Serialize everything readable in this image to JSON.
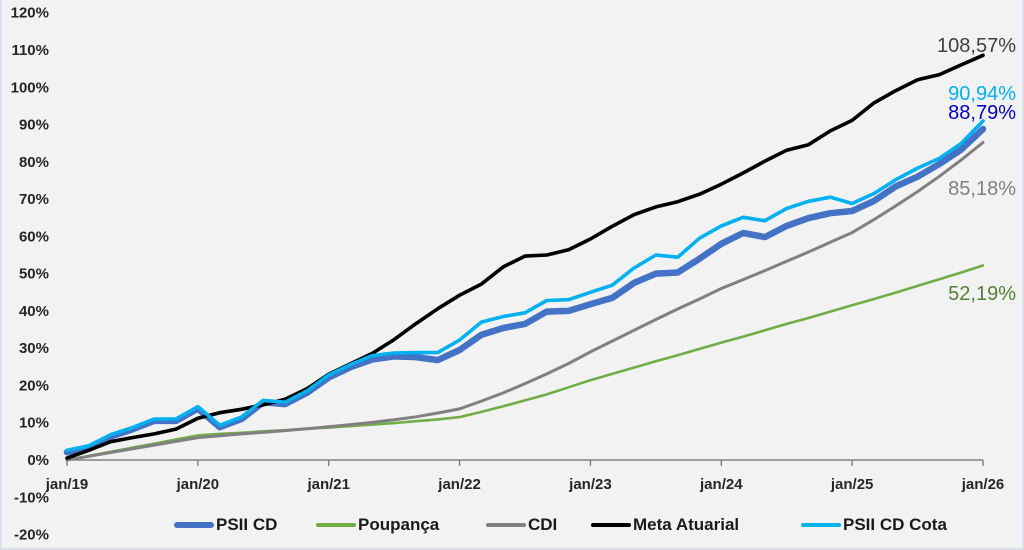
{
  "chart_data": {
    "type": "line",
    "title": "",
    "xlabel": "",
    "ylabel": "",
    "ylim": [
      -20,
      120
    ],
    "grid": false,
    "legend_position": "bottom",
    "y_ticks": [
      {
        "value": 120,
        "label": "120%"
      },
      {
        "value": 110,
        "label": "110%"
      },
      {
        "value": 100,
        "label": "100%"
      },
      {
        "value": 90,
        "label": "90%"
      },
      {
        "value": 80,
        "label": "80%"
      },
      {
        "value": 70,
        "label": "70%"
      },
      {
        "value": 60,
        "label": "60%"
      },
      {
        "value": 50,
        "label": "50%"
      },
      {
        "value": 40,
        "label": "40%"
      },
      {
        "value": 30,
        "label": "30%"
      },
      {
        "value": 20,
        "label": "20%"
      },
      {
        "value": 10,
        "label": "10%"
      },
      {
        "value": 0,
        "label": "0%"
      },
      {
        "value": -10,
        "label": "-10%"
      },
      {
        "value": -20,
        "label": "-20%"
      }
    ],
    "x_tick_labels": [
      "jan/19",
      "jan/20",
      "jan/21",
      "jan/22",
      "jan/23",
      "jan/24",
      "jan/25",
      "jan/26"
    ],
    "x": [
      "jan/19",
      "mar/19",
      "mai/19",
      "jul/19",
      "set/19",
      "nov/19",
      "jan/20",
      "mar/20",
      "mai/20",
      "jul/20",
      "set/20",
      "nov/20",
      "jan/21",
      "mar/21",
      "mai/21",
      "jul/21",
      "set/21",
      "nov/21",
      "jan/22",
      "mar/22",
      "mai/22",
      "jul/22",
      "set/22",
      "nov/22",
      "jan/23",
      "mar/23",
      "mai/23",
      "jul/23",
      "set/23",
      "nov/23",
      "jan/24",
      "mar/24",
      "mai/24",
      "jul/24",
      "set/24",
      "nov/24",
      "jan/25",
      "mar/25",
      "mai/25",
      "jul/25",
      "set/25",
      "nov/25",
      "jan/26"
    ],
    "series": [
      {
        "name": "PSII CD",
        "color": "#4472C4",
        "values": [
          2.1,
          3.3,
          6.3,
          8.2,
          10.5,
          10.5,
          13.8,
          8.8,
          11.0,
          15.5,
          15.0,
          18.0,
          22.1,
          24.9,
          27.0,
          27.8,
          27.6,
          26.8,
          29.5,
          33.6,
          35.4,
          36.5,
          39.8,
          40.0,
          41.8,
          43.5,
          47.5,
          50.0,
          50.3,
          54.0,
          58.0,
          60.9,
          59.8,
          62.8,
          64.9,
          66.2,
          66.8,
          69.5,
          73.4,
          76.0,
          79.4,
          83.3,
          88.79
        ]
      },
      {
        "name": "Poupança",
        "color": "#70AD47",
        "values": [
          0,
          1.1,
          2.2,
          3.3,
          4.4,
          5.5,
          6.6,
          7.0,
          7.3,
          7.7,
          8.0,
          8.4,
          8.7,
          9.1,
          9.5,
          9.9,
          10.4,
          10.9,
          11.5,
          12.9,
          14.4,
          16.0,
          17.6,
          19.5,
          21.4,
          23.1,
          24.8,
          26.5,
          28.1,
          29.8,
          31.5,
          33.1,
          34.8,
          36.5,
          38.1,
          39.8,
          41.5,
          43.2,
          44.9,
          46.7,
          48.5,
          50.3,
          52.19
        ]
      },
      {
        "name": "CDI",
        "color": "#808080",
        "values": [
          0,
          1.0,
          2.0,
          3.0,
          4.0,
          5.0,
          6.0,
          6.5,
          7.0,
          7.4,
          7.9,
          8.4,
          8.9,
          9.5,
          10.1,
          10.8,
          11.6,
          12.6,
          13.7,
          15.8,
          18.0,
          20.5,
          23.1,
          25.9,
          29.0,
          31.9,
          34.8,
          37.7,
          40.5,
          43.2,
          46.0,
          48.4,
          50.8,
          53.3,
          55.8,
          58.4,
          61.0,
          64.5,
          68.2,
          72.0,
          76.1,
          80.5,
          85.18
        ]
      },
      {
        "name": "Meta Atuarial",
        "color": "#000000",
        "values": [
          0.5,
          2.6,
          4.9,
          6.0,
          7.0,
          8.3,
          11.2,
          12.7,
          13.6,
          14.8,
          16.3,
          19.1,
          23.0,
          25.8,
          28.6,
          32.3,
          36.6,
          40.6,
          44.2,
          47.2,
          51.8,
          54.7,
          55.0,
          56.4,
          59.3,
          62.7,
          65.8,
          67.9,
          69.3,
          71.3,
          74.0,
          77.0,
          80.2,
          83.1,
          84.6,
          88.3,
          91.1,
          95.8,
          99.1,
          102.0,
          103.4,
          106.0,
          108.57
        ]
      },
      {
        "name": "PSII CD Cota",
        "color": "#00B0F0",
        "values": [
          2.6,
          3.8,
          6.8,
          8.7,
          11.0,
          11.0,
          14.3,
          9.3,
          11.5,
          16.0,
          15.5,
          18.5,
          22.8,
          25.6,
          28.0,
          28.7,
          28.8,
          28.8,
          32.2,
          37.0,
          38.5,
          39.5,
          42.8,
          43.0,
          45.0,
          46.9,
          51.5,
          55.0,
          54.4,
          59.5,
          62.8,
          65.1,
          64.2,
          67.5,
          69.4,
          70.5,
          68.8,
          71.5,
          75.2,
          78.3,
          80.9,
          84.9,
          90.94
        ]
      }
    ],
    "annotations": [
      {
        "text": "108,57%",
        "series": "Meta Atuarial",
        "color": "#404040"
      },
      {
        "text": "90,94%",
        "series": "PSII CD Cota",
        "color": "#00B0F0"
      },
      {
        "text": "88,79%",
        "series": "PSII CD",
        "color": "#0000C0"
      },
      {
        "text": "85,18%",
        "series": "CDI",
        "color": "#7F7F7F"
      },
      {
        "text": "52,19%",
        "series": "Poupança",
        "color": "#538135"
      }
    ]
  }
}
